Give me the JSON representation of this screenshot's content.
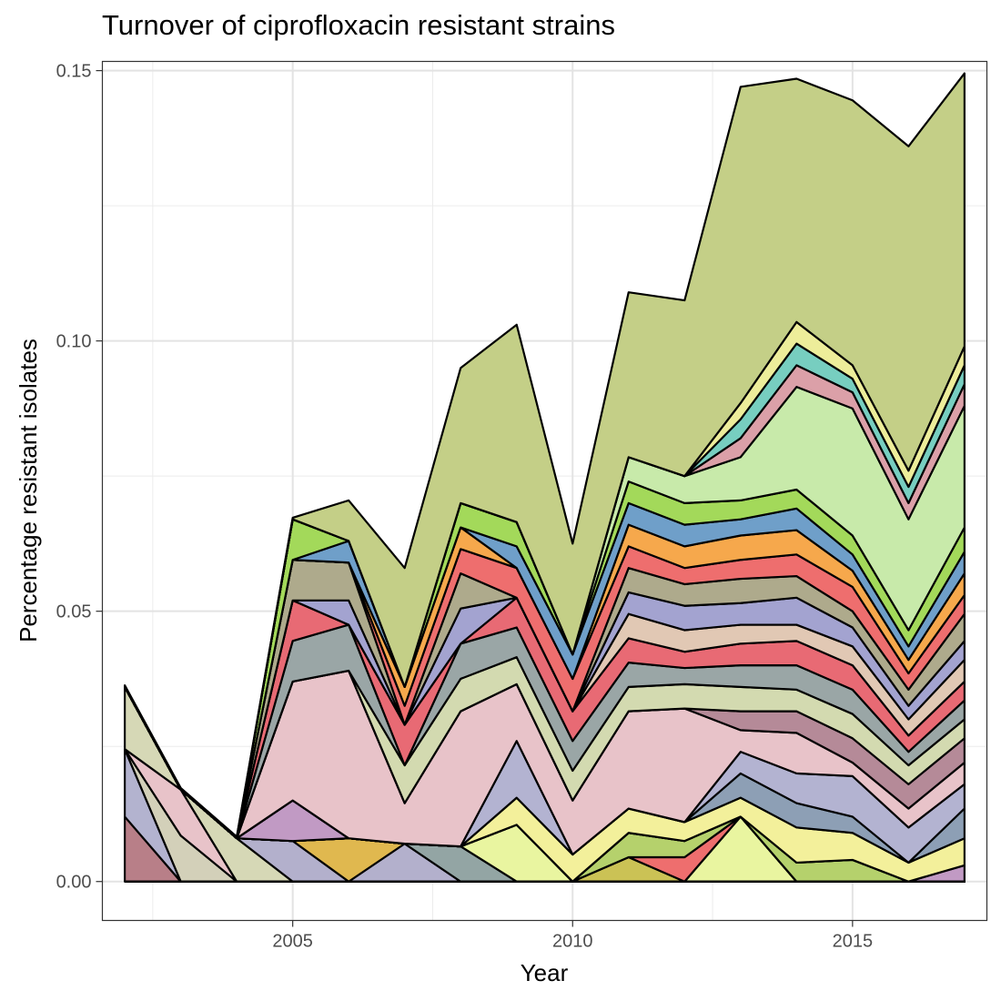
{
  "chart_data": {
    "type": "area",
    "stacked": true,
    "title": "Turnover of ciprofloxacin resistant strains",
    "xlabel": "Year",
    "ylabel": "Percentage resistant isolates",
    "xlim": [
      2001.6,
      2017.4
    ],
    "ylim": [
      -0.0072,
      0.1517
    ],
    "x_ticks": [
      "2005",
      "2010",
      "2015"
    ],
    "y_ticks": [
      "0.00",
      "0.05",
      "0.10",
      "0.15"
    ],
    "grid": true,
    "legend": "none",
    "x": [
      2002,
      2003,
      2004,
      2005,
      2006,
      2007,
      2008,
      2009,
      2010,
      2011,
      2012,
      2013,
      2014,
      2015,
      2016,
      2017
    ],
    "series": [
      {
        "color": "#b87f88",
        "values": [
          0.012,
          0,
          0,
          0,
          0,
          0,
          0,
          0,
          0,
          0,
          0,
          0,
          0,
          0,
          0,
          0
        ]
      },
      {
        "color": "#b3b3cf",
        "values": [
          0.0125,
          0,
          0,
          0,
          0,
          0,
          0,
          0,
          0,
          0,
          0,
          0,
          0,
          0,
          0,
          0
        ]
      },
      {
        "color": "#d3d0b9",
        "values": [
          0,
          0.0085,
          0,
          0,
          0,
          0,
          0,
          0,
          0,
          0,
          0,
          0,
          0,
          0,
          0,
          0
        ]
      },
      {
        "color": "#e8c3c9",
        "values": [
          0,
          0.0085,
          0,
          0,
          0,
          0,
          0,
          0,
          0,
          0,
          0,
          0,
          0,
          0,
          0,
          0
        ]
      },
      {
        "color": "#d6d8b6",
        "values": [
          0.0115,
          0,
          0.008,
          0,
          0,
          0,
          0,
          0,
          0,
          0,
          0,
          0,
          0,
          0,
          0,
          0
        ]
      },
      {
        "color": "#b3b0cc",
        "values": [
          0,
          0,
          0,
          0.0075,
          0,
          0.007,
          0,
          0,
          0,
          0,
          0,
          0,
          0,
          0,
          0,
          0
        ]
      },
      {
        "color": "#e0b84f",
        "values": [
          0,
          0,
          0,
          0,
          0.008,
          0,
          0,
          0,
          0,
          0,
          0,
          0,
          0,
          0,
          0,
          0
        ]
      },
      {
        "color": "#93a5a4",
        "values": [
          0,
          0,
          0,
          0,
          0,
          0,
          0.0065,
          0,
          0,
          0,
          0,
          0,
          0,
          0,
          0,
          0
        ]
      },
      {
        "color": "#e9f5a0",
        "values": [
          0,
          0,
          0,
          0,
          0,
          0,
          0,
          0.0105,
          0,
          0,
          0,
          0.012,
          0,
          0,
          0,
          0
        ]
      },
      {
        "color": "#cbc255",
        "values": [
          0,
          0,
          0,
          0,
          0,
          0,
          0,
          0,
          0,
          0.0045,
          0,
          0,
          0,
          0,
          0,
          0
        ]
      },
      {
        "color": "#ee6e6e",
        "values": [
          0,
          0,
          0,
          0,
          0,
          0,
          0,
          0,
          0,
          0,
          0.0045,
          0,
          0,
          0,
          0,
          0
        ]
      },
      {
        "color": "#b5d16c",
        "values": [
          0,
          0,
          0,
          0,
          0,
          0,
          0,
          0,
          0,
          0.0045,
          0.003,
          0,
          0.0035,
          0.004,
          0,
          0
        ]
      },
      {
        "color": "#c19ac4",
        "values": [
          0,
          0,
          0,
          0.0075,
          0,
          0,
          0,
          0,
          0,
          0,
          0,
          0,
          0,
          0,
          0,
          0.003
        ]
      },
      {
        "color": "#f3f09b",
        "values": [
          0,
          0,
          0,
          0,
          0,
          0,
          0,
          0.005,
          0.005,
          0.0045,
          0.0035,
          0.0035,
          0.0065,
          0.005,
          0.0035,
          0.005
        ]
      },
      {
        "color": "#8d9fb5",
        "values": [
          0,
          0,
          0,
          0,
          0,
          0,
          0,
          0,
          0,
          0,
          0,
          0.0045,
          0.0045,
          0.003,
          0,
          0.0055
        ]
      },
      {
        "color": "#b3b3d1",
        "values": [
          0,
          0,
          0,
          0,
          0,
          0,
          0,
          0.0105,
          0,
          0,
          0,
          0.004,
          0.0055,
          0.0075,
          0.0065,
          0.0045
        ]
      },
      {
        "color": "#e8c3c9",
        "values": [
          0,
          0,
          0,
          0.022,
          0.031,
          0.0075,
          0.025,
          0.0105,
          0.01,
          0.018,
          0.021,
          0.004,
          0.0075,
          0.0025,
          0.0035,
          0.004
        ]
      },
      {
        "color": "#b58a98",
        "values": [
          0,
          0,
          0,
          0,
          0,
          0,
          0,
          0,
          0,
          0,
          0,
          0.0035,
          0.004,
          0.0045,
          0.0045,
          0.0045
        ]
      },
      {
        "color": "#d3dab0",
        "values": [
          0,
          0,
          0,
          0,
          0,
          0.007,
          0.006,
          0.005,
          0.0055,
          0.0045,
          0.0045,
          0.0045,
          0.004,
          0.0045,
          0.0035,
          0.0035
        ]
      },
      {
        "color": "#9aa6a6",
        "values": [
          0,
          0,
          0,
          0.0075,
          0.0085,
          0,
          0.0065,
          0.0055,
          0.0055,
          0.0045,
          0.003,
          0.004,
          0.0045,
          0.0045,
          0.0025,
          0.0035
        ]
      },
      {
        "color": "#e86a74",
        "values": [
          0,
          0,
          0,
          0.0075,
          0,
          0.0075,
          0,
          0.0055,
          0.0055,
          0.0045,
          0.003,
          0.004,
          0.0045,
          0.0045,
          0.003,
          0.0035
        ]
      },
      {
        "color": "#e1c8b4",
        "values": [
          0,
          0,
          0,
          0,
          0,
          0,
          0,
          0,
          0,
          0.0045,
          0.004,
          0.0035,
          0.003,
          0.0035,
          0.003,
          0.004
        ]
      },
      {
        "color": "#a3a3d0",
        "values": [
          0,
          0,
          0,
          0,
          0.0045,
          0,
          0.0065,
          0,
          0,
          0.004,
          0.0045,
          0.004,
          0.005,
          0.0035,
          0.0025,
          0.0035
        ]
      },
      {
        "color": "#aeaa8c",
        "values": [
          0,
          0,
          0,
          0.0075,
          0.007,
          0,
          0.0065,
          0,
          0,
          0.0045,
          0.004,
          0.0045,
          0.004,
          0.003,
          0.003,
          0.005
        ]
      },
      {
        "color": "#ee6e6e",
        "values": [
          0,
          0,
          0,
          0,
          0,
          0.0035,
          0.0045,
          0.0055,
          0.006,
          0.004,
          0.003,
          0.0035,
          0.004,
          0.0045,
          0.003,
          0.0035
        ]
      },
      {
        "color": "#f6a84c",
        "values": [
          0,
          0,
          0,
          0,
          0,
          0.0035,
          0.004,
          0,
          0,
          0.004,
          0.004,
          0.0045,
          0.0045,
          0.003,
          0.0025,
          0.004
        ]
      },
      {
        "color": "#6f9fc9",
        "values": [
          0,
          0,
          0,
          0,
          0.004,
          0,
          0,
          0.004,
          0.0045,
          0.004,
          0.004,
          0.003,
          0.004,
          0.003,
          0.0025,
          0.004
        ]
      },
      {
        "color": "#a3d95a",
        "values": [
          0,
          0,
          0,
          0.0075,
          0,
          0,
          0.0045,
          0.0045,
          0,
          0.004,
          0.004,
          0.0035,
          0.0035,
          0.0035,
          0.003,
          0.0045
        ]
      },
      {
        "color": "#c8eaaa",
        "values": [
          0,
          0,
          0,
          0,
          0,
          0,
          0,
          0,
          0,
          0.0045,
          0.005,
          0.008,
          0.019,
          0.0235,
          0.0205,
          0.0225
        ]
      },
      {
        "color": "#dba0a8",
        "values": [
          0,
          0,
          0,
          0,
          0,
          0,
          0,
          0,
          0,
          0,
          0,
          0.0035,
          0.004,
          0.003,
          0.003,
          0.004
        ]
      },
      {
        "color": "#77cec0",
        "values": [
          0,
          0,
          0,
          0,
          0,
          0,
          0,
          0,
          0,
          0,
          0,
          0.0035,
          0.004,
          0.0025,
          0.003,
          0.0035
        ]
      },
      {
        "color": "#eded9a",
        "values": [
          0,
          0,
          0,
          0,
          0,
          0,
          0,
          0,
          0,
          0,
          0,
          0.003,
          0.004,
          0.0025,
          0.003,
          0.0035
        ]
      },
      {
        "color": "#c4cf87",
        "values": [
          0.0003,
          0.0003,
          0.0003,
          0.0003,
          0.0075,
          0.022,
          0.025,
          0.0365,
          0.0205,
          0.0305,
          0.0325,
          0.0585,
          0.045,
          0.049,
          0.06,
          0.0505
        ]
      }
    ]
  }
}
